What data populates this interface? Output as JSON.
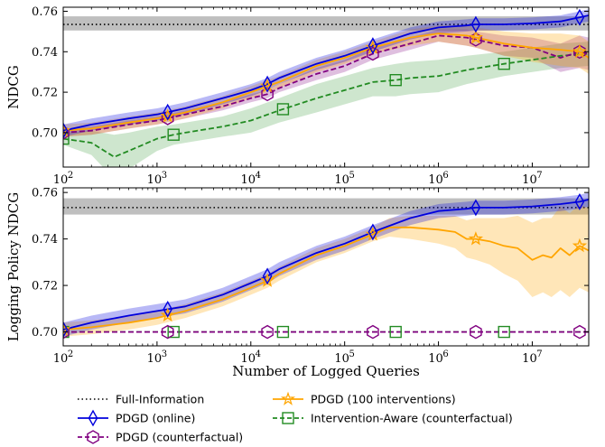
{
  "colors": {
    "online": "#0000dd",
    "counterfactual": "#800080",
    "interventions": "#ffa500",
    "aware": "#228b22",
    "full_info": "#000000",
    "full_info_band": "#bfbfbf"
  },
  "legend": {
    "full_info": "Full-Information",
    "online": "PDGD (online)",
    "counterfactual": "PDGD (counterfactual)",
    "interventions": "PDGD (100 interventions)",
    "aware": "Intervention-Aware (counterfactual)"
  },
  "chart_data": [
    {
      "type": "line",
      "ylabel": "NDCG",
      "xlabel": "",
      "xscale": "log",
      "xlim": [
        100,
        40000000
      ],
      "ylim": [
        0.683,
        0.762
      ],
      "grid": false,
      "xticks": [
        {
          "value": 100,
          "base": "10",
          "exp": "2"
        },
        {
          "value": 1000,
          "base": "10",
          "exp": "3"
        },
        {
          "value": 10000,
          "base": "10",
          "exp": "4"
        },
        {
          "value": 100000,
          "base": "10",
          "exp": "5"
        },
        {
          "value": 1000000,
          "base": "10",
          "exp": "6"
        },
        {
          "value": 10000000,
          "base": "10",
          "exp": "7"
        }
      ],
      "yticks": [
        {
          "value": 0.7,
          "label": "0.70"
        },
        {
          "value": 0.72,
          "label": "0.72"
        },
        {
          "value": 0.74,
          "label": "0.74"
        },
        {
          "value": 0.76,
          "label": "0.76"
        }
      ],
      "reference": {
        "key": "full_info",
        "value": 0.7535,
        "band": [
          0.7505,
          0.7575
        ]
      },
      "series": [
        {
          "key": "online",
          "x": [
            100,
            200,
            500,
            1000,
            2000,
            5000,
            10000,
            15000,
            20000,
            50000,
            100000,
            200000,
            500000,
            1000000,
            2000000,
            2500000,
            5000000,
            10000000,
            20000000,
            32000000,
            40000000
          ],
          "y": [
            0.701,
            0.704,
            0.707,
            0.709,
            0.712,
            0.717,
            0.721,
            0.724,
            0.727,
            0.734,
            0.738,
            0.743,
            0.749,
            0.752,
            0.753,
            0.7535,
            0.7535,
            0.754,
            0.755,
            0.757,
            0.758
          ],
          "err": [
            0.003,
            0.003,
            0.003,
            0.003,
            0.003,
            0.003,
            0.003,
            0.003,
            0.003,
            0.003,
            0.003,
            0.003,
            0.003,
            0.003,
            0.003,
            0.003,
            0.003,
            0.003,
            0.003,
            0.003,
            0.003
          ],
          "markers": [
            100,
            1300,
            15000,
            200000,
            2500000,
            32000000
          ]
        },
        {
          "key": "counterfactual",
          "x": [
            100,
            200,
            500,
            1000,
            2000,
            5000,
            10000,
            15000,
            20000,
            50000,
            100000,
            200000,
            500000,
            1000000,
            2000000,
            2500000,
            5000000,
            10000000,
            20000000,
            32000000,
            40000000
          ],
          "y": [
            0.7,
            0.701,
            0.704,
            0.706,
            0.709,
            0.713,
            0.717,
            0.719,
            0.722,
            0.729,
            0.733,
            0.739,
            0.744,
            0.748,
            0.747,
            0.746,
            0.743,
            0.742,
            0.737,
            0.74,
            0.739
          ],
          "err": [
            0.002,
            0.002,
            0.002,
            0.002,
            0.002,
            0.002,
            0.002,
            0.002,
            0.002,
            0.003,
            0.003,
            0.003,
            0.003,
            0.003,
            0.004,
            0.004,
            0.005,
            0.005,
            0.007,
            0.008,
            0.008
          ],
          "markers": [
            100,
            1300,
            15000,
            200000,
            2500000,
            32000000
          ]
        },
        {
          "key": "interventions",
          "x": [
            100,
            200,
            500,
            1000,
            2000,
            5000,
            10000,
            15000,
            20000,
            50000,
            100000,
            200000,
            500000,
            1000000,
            2000000,
            2500000,
            5000000,
            10000000,
            20000000,
            32000000,
            40000000
          ],
          "y": [
            0.701,
            0.702,
            0.705,
            0.707,
            0.71,
            0.715,
            0.72,
            0.723,
            0.725,
            0.733,
            0.737,
            0.742,
            0.747,
            0.749,
            0.748,
            0.747,
            0.744,
            0.742,
            0.741,
            0.74,
            0.737
          ],
          "err": [
            0.003,
            0.003,
            0.003,
            0.003,
            0.003,
            0.003,
            0.003,
            0.003,
            0.003,
            0.003,
            0.003,
            0.003,
            0.004,
            0.004,
            0.005,
            0.005,
            0.006,
            0.007,
            0.008,
            0.008,
            0.008
          ],
          "markers": [
            100,
            1300,
            15000,
            200000,
            2500000,
            32000000
          ]
        },
        {
          "key": "aware",
          "x": [
            100,
            200,
            350,
            500,
            1000,
            1500,
            2000,
            5000,
            10000,
            20000,
            50000,
            100000,
            200000,
            350000,
            500000,
            1000000,
            2000000,
            5000000,
            10000000,
            20000000,
            40000000
          ],
          "y": [
            0.697,
            0.695,
            0.688,
            0.691,
            0.697,
            0.699,
            0.7,
            0.703,
            0.706,
            0.711,
            0.717,
            0.721,
            0.725,
            0.726,
            0.727,
            0.728,
            0.731,
            0.734,
            0.736,
            0.738,
            0.739
          ],
          "err": [
            0.003,
            0.006,
            0.011,
            0.009,
            0.006,
            0.005,
            0.005,
            0.005,
            0.006,
            0.006,
            0.007,
            0.007,
            0.007,
            0.008,
            0.008,
            0.008,
            0.007,
            0.006,
            0.006,
            0.006,
            0.006
          ],
          "markers": [
            100,
            1500,
            22000,
            350000,
            5000000
          ]
        }
      ]
    },
    {
      "type": "line",
      "ylabel": "Logging Policy NDCG",
      "xlabel": "Number of Logged Queries",
      "xscale": "log",
      "xlim": [
        100,
        40000000
      ],
      "ylim": [
        0.694,
        0.762
      ],
      "grid": false,
      "xticks": [
        {
          "value": 100,
          "base": "10",
          "exp": "2"
        },
        {
          "value": 1000,
          "base": "10",
          "exp": "3"
        },
        {
          "value": 10000,
          "base": "10",
          "exp": "4"
        },
        {
          "value": 100000,
          "base": "10",
          "exp": "5"
        },
        {
          "value": 1000000,
          "base": "10",
          "exp": "6"
        },
        {
          "value": 10000000,
          "base": "10",
          "exp": "7"
        }
      ],
      "yticks": [
        {
          "value": 0.7,
          "label": "0.70"
        },
        {
          "value": 0.72,
          "label": "0.72"
        },
        {
          "value": 0.74,
          "label": "0.74"
        },
        {
          "value": 0.76,
          "label": "0.76"
        }
      ],
      "reference": {
        "key": "full_info",
        "value": 0.7535,
        "band": [
          0.7505,
          0.7575
        ]
      },
      "series": [
        {
          "key": "online",
          "x": [
            100,
            200,
            500,
            1000,
            2000,
            5000,
            10000,
            15000,
            20000,
            50000,
            100000,
            200000,
            500000,
            1000000,
            2000000,
            2500000,
            5000000,
            10000000,
            20000000,
            32000000,
            40000000
          ],
          "y": [
            0.701,
            0.704,
            0.707,
            0.709,
            0.711,
            0.716,
            0.721,
            0.724,
            0.727,
            0.734,
            0.738,
            0.743,
            0.749,
            0.752,
            0.753,
            0.7535,
            0.7535,
            0.754,
            0.755,
            0.756,
            0.757
          ],
          "err": [
            0.003,
            0.003,
            0.003,
            0.003,
            0.003,
            0.003,
            0.003,
            0.003,
            0.003,
            0.003,
            0.003,
            0.003,
            0.003,
            0.003,
            0.003,
            0.003,
            0.003,
            0.003,
            0.003,
            0.003,
            0.003
          ],
          "markers": [
            100,
            1300,
            15000,
            200000,
            2500000,
            32000000
          ]
        },
        {
          "key": "counterfactual",
          "x": [
            100,
            40000000
          ],
          "y": [
            0.7,
            0.7
          ],
          "err": [
            0.0,
            0.0
          ],
          "markers": [
            100,
            1300,
            15000,
            200000,
            2500000,
            32000000
          ]
        },
        {
          "key": "interventions",
          "x": [
            100,
            200,
            500,
            1000,
            2000,
            5000,
            10000,
            15000,
            20000,
            50000,
            100000,
            200000,
            300000,
            500000,
            1000000,
            1500000,
            2000000,
            2500000,
            3500000,
            5000000,
            7000000,
            10000000,
            13000000,
            16000000,
            20000000,
            25000000,
            32000000,
            40000000
          ],
          "y": [
            0.701,
            0.702,
            0.704,
            0.706,
            0.709,
            0.714,
            0.719,
            0.722,
            0.725,
            0.733,
            0.737,
            0.742,
            0.745,
            0.745,
            0.744,
            0.743,
            0.74,
            0.74,
            0.739,
            0.737,
            0.736,
            0.731,
            0.733,
            0.732,
            0.736,
            0.733,
            0.737,
            0.735
          ],
          "err": [
            0.003,
            0.003,
            0.003,
            0.003,
            0.003,
            0.003,
            0.003,
            0.003,
            0.003,
            0.003,
            0.003,
            0.003,
            0.004,
            0.005,
            0.006,
            0.007,
            0.008,
            0.009,
            0.01,
            0.012,
            0.014,
            0.016,
            0.016,
            0.017,
            0.018,
            0.018,
            0.018,
            0.018
          ],
          "markers": [
            100,
            1300,
            15000,
            200000,
            2500000,
            32000000
          ]
        },
        {
          "key": "aware",
          "x": [
            100,
            40000000
          ],
          "y": [
            0.7,
            0.7
          ],
          "err": [
            0.0,
            0.0
          ],
          "markers": [
            100,
            1500,
            22000,
            350000,
            5000000
          ]
        }
      ]
    }
  ]
}
